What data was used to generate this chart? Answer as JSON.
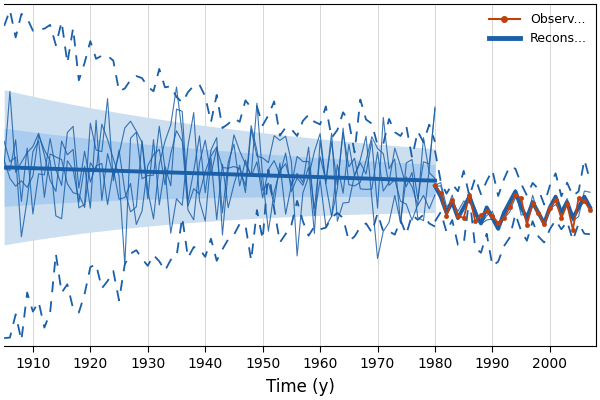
{
  "title": "",
  "xlabel": "Time (y)",
  "ylabel": "",
  "xlim": [
    1905,
    2008
  ],
  "ylim": [
    -3.2,
    3.2
  ],
  "x_ticks": [
    1910,
    1920,
    1930,
    1940,
    1950,
    1960,
    1970,
    1980,
    1990,
    2000
  ],
  "background_color": "#ffffff",
  "plot_bg_color": "#ffffff",
  "reconstruction_color": "#1a5fa8",
  "observation_color": "#c0410e",
  "dashed_color": "#1a5fa8",
  "shade_outer_color": "#ccdff0",
  "shade_inner_color": "#aaccee",
  "xlabel_fontsize": 12,
  "tick_fontsize": 10
}
